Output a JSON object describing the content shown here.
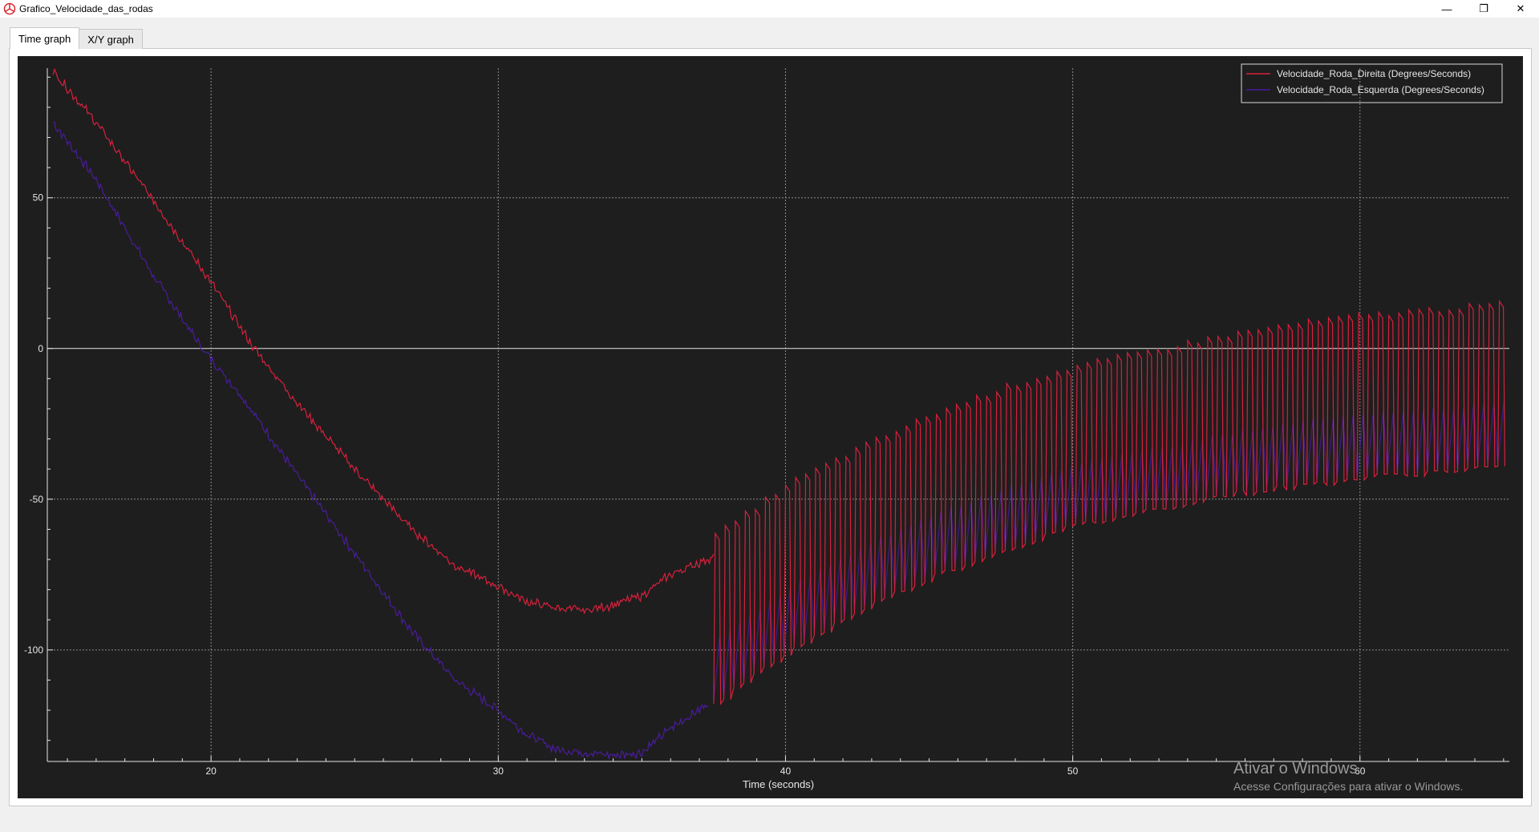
{
  "window": {
    "title": "Grafico_Velocidade_das_rodas",
    "icons": [
      "app-logo-icon",
      "minimize-icon",
      "restore-icon",
      "close-icon"
    ],
    "minimize_glyph": "—",
    "restore_glyph": "❐",
    "close_glyph": "✕"
  },
  "tabs": [
    {
      "label": "Time graph",
      "active": true
    },
    {
      "label": "X/Y graph",
      "active": false
    }
  ],
  "watermark": {
    "title": "Ativar o Windows",
    "subtitle": "Acesse Configurações para ativar o Windows."
  },
  "colors": {
    "plot_background": "#1e1e1e",
    "grid": "#8c8c8c",
    "axis": "#e6e6e6",
    "series_direita": "#d8203c",
    "series_esquerda": "#4a1c9c"
  },
  "chart_data": {
    "type": "line",
    "title": "",
    "xlabel": "Time (seconds)",
    "ylabel": "",
    "xlim": [
      14.3,
      65.2
    ],
    "ylim": [
      -137,
      93
    ],
    "xticks": [
      20,
      30,
      40,
      50,
      60
    ],
    "yticks": [
      50,
      0,
      -50,
      -100
    ],
    "grid": true,
    "legend_position": "top-right",
    "series": [
      {
        "name": "Velocidade_Roda_Direita (Degrees/Seconds)",
        "color": "#d8203c",
        "segments": [
          {
            "x": [
              14.5,
              16,
              18,
              20,
              21.5,
              23,
              25,
              27,
              28.5,
              30,
              31,
              32,
              33,
              34,
              35,
              36,
              37.5
            ],
            "y": [
              92,
              75,
              49,
              22,
              0,
              -18,
              -40,
              -60,
              -72,
              -79,
              -84,
              -86,
              -87,
              -85,
              -82,
              -75,
              -69
            ]
          }
        ],
        "oscillation": {
          "start_x": 37.5,
          "end_x": 65,
          "period_s": 0.35,
          "upper": {
            "x": [
              37.5,
              40,
              42.5,
              45,
              47.5,
              50,
              52.5,
              55,
              57.5,
              60,
              62.5,
              65
            ],
            "y": [
              -62,
              -45,
              -33,
              -22,
              -13,
              -6,
              -1,
              4,
              8,
              11,
              13,
              15
            ]
          },
          "lower": {
            "x": [
              37.5,
              40,
              42.5,
              45,
              47.5,
              50,
              52.5,
              55,
              57.5,
              60,
              62.5,
              65
            ],
            "y": [
              -118,
              -101,
              -87,
              -76,
              -67,
              -59,
              -54,
              -49,
              -46,
              -43,
              -41,
              -39
            ]
          }
        }
      },
      {
        "name": "Velocidade_Roda_Esquerda (Degrees/Seconds)",
        "color": "#4a1c9c",
        "segments": [
          {
            "x": [
              14.5,
              16,
              18,
              19.7,
              21,
              23,
              25,
              27,
              28.5,
              30,
              31,
              32,
              33,
              34,
              35,
              36,
              37.3
            ],
            "y": [
              75,
              56,
              24,
              0,
              -15,
              -42,
              -68,
              -94,
              -110,
              -120,
              -128,
              -133,
              -134,
              -135,
              -134,
              -126,
              -118
            ]
          }
        ]
      }
    ]
  }
}
